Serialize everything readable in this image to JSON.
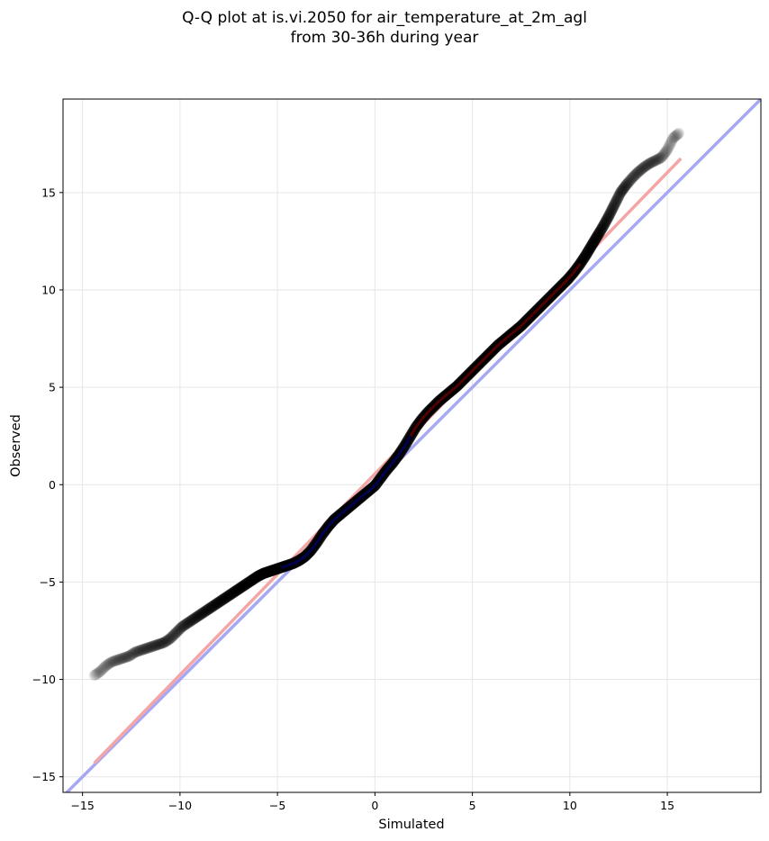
{
  "chart_data": {
    "type": "scatter",
    "title": "Q-Q plot at is.vi.2050 for air_temperature_at_2m_agl",
    "subtitle": "from 30-36h during year",
    "xlabel": "Simulated",
    "ylabel": "Observed",
    "xlim": [
      -16,
      19.8
    ],
    "ylim": [
      -15.8,
      19.8
    ],
    "xticks": [
      -15,
      -10,
      -5,
      0,
      5,
      10,
      15
    ],
    "yticks": [
      -15,
      -10,
      -5,
      0,
      5,
      10,
      15
    ],
    "xtick_labels": [
      "−15",
      "−10",
      "−5",
      "0",
      "5",
      "10",
      "15"
    ],
    "ytick_labels": [
      "−15",
      "−10",
      "−5",
      "0",
      "5",
      "10",
      "15"
    ],
    "grid": true,
    "quantile_points": [
      [
        -14.4,
        -9.8
      ],
      [
        -14.1,
        -9.6
      ],
      [
        -13.8,
        -9.3
      ],
      [
        -13.5,
        -9.1
      ],
      [
        -13.2,
        -9.0
      ],
      [
        -12.9,
        -8.9
      ],
      [
        -12.6,
        -8.8
      ],
      [
        -12.3,
        -8.6
      ],
      [
        -12.0,
        -8.5
      ],
      [
        -11.7,
        -8.4
      ],
      [
        -11.4,
        -8.3
      ],
      [
        -11.1,
        -8.2
      ],
      [
        -10.8,
        -8.1
      ],
      [
        -10.5,
        -7.9
      ],
      [
        -10.2,
        -7.6
      ],
      [
        -9.9,
        -7.3
      ],
      [
        -9.6,
        -7.1
      ],
      [
        -9.3,
        -6.9
      ],
      [
        -9.0,
        -6.7
      ],
      [
        -8.7,
        -6.5
      ],
      [
        -8.4,
        -6.3
      ],
      [
        -8.1,
        -6.1
      ],
      [
        -7.8,
        -5.9
      ],
      [
        -7.5,
        -5.7
      ],
      [
        -7.2,
        -5.5
      ],
      [
        -6.9,
        -5.3
      ],
      [
        -6.6,
        -5.1
      ],
      [
        -6.3,
        -4.9
      ],
      [
        -6.0,
        -4.7
      ],
      [
        -5.7,
        -4.55
      ],
      [
        -5.4,
        -4.45
      ],
      [
        -5.1,
        -4.35
      ],
      [
        -4.8,
        -4.25
      ],
      [
        -4.5,
        -4.15
      ],
      [
        -4.2,
        -4.05
      ],
      [
        -3.9,
        -3.9
      ],
      [
        -3.6,
        -3.7
      ],
      [
        -3.3,
        -3.4
      ],
      [
        -3.0,
        -3.0
      ],
      [
        -2.7,
        -2.55
      ],
      [
        -2.4,
        -2.15
      ],
      [
        -2.1,
        -1.8
      ],
      [
        -1.8,
        -1.55
      ],
      [
        -1.5,
        -1.3
      ],
      [
        -1.2,
        -1.05
      ],
      [
        -0.9,
        -0.8
      ],
      [
        -0.6,
        -0.55
      ],
      [
        -0.3,
        -0.3
      ],
      [
        0.0,
        -0.05
      ],
      [
        0.3,
        0.35
      ],
      [
        0.6,
        0.75
      ],
      [
        0.9,
        1.1
      ],
      [
        1.2,
        1.5
      ],
      [
        1.5,
        1.95
      ],
      [
        1.8,
        2.45
      ],
      [
        2.1,
        2.95
      ],
      [
        2.4,
        3.35
      ],
      [
        2.7,
        3.7
      ],
      [
        3.0,
        4.0
      ],
      [
        3.3,
        4.3
      ],
      [
        3.6,
        4.55
      ],
      [
        3.9,
        4.8
      ],
      [
        4.2,
        5.05
      ],
      [
        4.5,
        5.35
      ],
      [
        4.8,
        5.65
      ],
      [
        5.1,
        5.95
      ],
      [
        5.4,
        6.25
      ],
      [
        5.7,
        6.55
      ],
      [
        6.0,
        6.85
      ],
      [
        6.3,
        7.15
      ],
      [
        6.6,
        7.4
      ],
      [
        6.9,
        7.65
      ],
      [
        7.2,
        7.9
      ],
      [
        7.5,
        8.15
      ],
      [
        7.8,
        8.45
      ],
      [
        8.1,
        8.75
      ],
      [
        8.4,
        9.05
      ],
      [
        8.7,
        9.35
      ],
      [
        9.0,
        9.65
      ],
      [
        9.3,
        9.95
      ],
      [
        9.6,
        10.25
      ],
      [
        9.9,
        10.55
      ],
      [
        10.2,
        10.9
      ],
      [
        10.5,
        11.3
      ],
      [
        10.8,
        11.75
      ],
      [
        11.1,
        12.25
      ],
      [
        11.4,
        12.75
      ],
      [
        11.7,
        13.25
      ],
      [
        12.0,
        13.8
      ],
      [
        12.3,
        14.4
      ],
      [
        12.6,
        15.0
      ],
      [
        12.9,
        15.4
      ],
      [
        13.2,
        15.75
      ],
      [
        13.5,
        16.05
      ],
      [
        13.8,
        16.3
      ],
      [
        14.1,
        16.5
      ],
      [
        14.4,
        16.65
      ],
      [
        14.7,
        16.8
      ],
      [
        15.0,
        17.2
      ],
      [
        15.3,
        17.8
      ],
      [
        15.6,
        18.05
      ]
    ],
    "fit_line": {
      "x": [
        -14.4,
        15.7
      ],
      "y": [
        -14.3,
        16.75
      ],
      "color": "#f4a6a6"
    },
    "identity_line": {
      "x": [
        -16,
        19.8
      ],
      "y": [
        -16,
        19.8
      ],
      "color": "#a8a8f2"
    },
    "point_color": "#000000",
    "highlight_dark_red": "#7a0000",
    "highlight_dark_blue": "#00007a"
  }
}
